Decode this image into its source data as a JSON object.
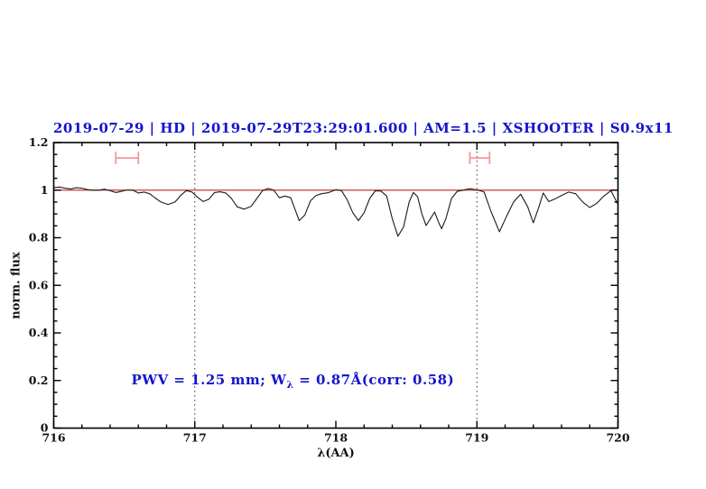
{
  "figure": {
    "title": "2019-07-29 | HD | 2019-07-29T23:29:01.600 | AM=1.5 | XSHOOTER | S0.9x11",
    "title_color": "#1414cc"
  },
  "chart_data": {
    "type": "line",
    "title": "2019-07-29 | HD | 2019-07-29T23:29:01.600 | AM=1.5 | XSHOOTER | S0.9x11",
    "xlabel": "λ(AA)",
    "ylabel": "norm. flux",
    "xlim": [
      716,
      720
    ],
    "ylim": [
      0,
      1.2
    ],
    "x_major_ticks": [
      716,
      717,
      718,
      719,
      720
    ],
    "x_tick_labels": [
      "716",
      "717",
      "718",
      "719",
      "720"
    ],
    "x_minor_step": 0.2,
    "y_major_ticks": [
      0,
      0.2,
      0.4,
      0.6,
      0.8,
      1,
      1.2
    ],
    "y_tick_labels": [
      "0",
      "0.2",
      "0.4",
      "0.6",
      "0.8",
      "1",
      "1.2"
    ],
    "y_minor_step": 0.05,
    "grid": "off",
    "vlines": {
      "x": [
        717,
        719
      ],
      "style": "dotted",
      "color": "#333333"
    },
    "continuum": {
      "y": 1.0,
      "color": "#c23b3b"
    },
    "series": [
      {
        "name": "spectrum",
        "color": "#1a1a1a",
        "points": [
          [
            716.0,
            1.01
          ],
          [
            716.04,
            1.013
          ],
          [
            716.08,
            1.008
          ],
          [
            716.12,
            1.005
          ],
          [
            716.16,
            1.01
          ],
          [
            716.2,
            1.008
          ],
          [
            716.24,
            1.002
          ],
          [
            716.28,
            1.0
          ],
          [
            716.32,
            1.0
          ],
          [
            716.36,
            1.004
          ],
          [
            716.4,
            0.998
          ],
          [
            716.44,
            0.99
          ],
          [
            716.48,
            0.995
          ],
          [
            716.52,
            1.001
          ],
          [
            716.56,
            1.0
          ],
          [
            716.6,
            0.988
          ],
          [
            716.64,
            0.992
          ],
          [
            716.68,
            0.985
          ],
          [
            716.72,
            0.967
          ],
          [
            716.76,
            0.95
          ],
          [
            716.81,
            0.94
          ],
          [
            716.86,
            0.95
          ],
          [
            716.9,
            0.978
          ],
          [
            716.94,
            0.998
          ],
          [
            716.98,
            0.992
          ],
          [
            717.02,
            0.97
          ],
          [
            717.06,
            0.952
          ],
          [
            717.1,
            0.962
          ],
          [
            717.14,
            0.99
          ],
          [
            717.18,
            0.993
          ],
          [
            717.22,
            0.988
          ],
          [
            717.26,
            0.965
          ],
          [
            717.3,
            0.93
          ],
          [
            717.35,
            0.92
          ],
          [
            717.4,
            0.932
          ],
          [
            717.44,
            0.965
          ],
          [
            717.48,
            0.998
          ],
          [
            717.52,
            1.007
          ],
          [
            717.56,
            1.0
          ],
          [
            717.6,
            0.968
          ],
          [
            717.64,
            0.975
          ],
          [
            717.68,
            0.968
          ],
          [
            717.71,
            0.92
          ],
          [
            717.74,
            0.872
          ],
          [
            717.78,
            0.895
          ],
          [
            717.82,
            0.955
          ],
          [
            717.86,
            0.978
          ],
          [
            717.9,
            0.985
          ],
          [
            717.95,
            0.99
          ],
          [
            718.0,
            1.002
          ],
          [
            718.04,
            0.998
          ],
          [
            718.08,
            0.96
          ],
          [
            718.12,
            0.905
          ],
          [
            718.16,
            0.872
          ],
          [
            718.2,
            0.905
          ],
          [
            718.24,
            0.965
          ],
          [
            718.28,
            0.997
          ],
          [
            718.32,
            0.996
          ],
          [
            718.36,
            0.975
          ],
          [
            718.4,
            0.88
          ],
          [
            718.44,
            0.806
          ],
          [
            718.48,
            0.845
          ],
          [
            718.52,
            0.95
          ],
          [
            718.55,
            0.99
          ],
          [
            718.58,
            0.972
          ],
          [
            718.61,
            0.9
          ],
          [
            718.64,
            0.851
          ],
          [
            718.67,
            0.88
          ],
          [
            718.7,
            0.908
          ],
          [
            718.73,
            0.862
          ],
          [
            718.75,
            0.838
          ],
          [
            718.78,
            0.88
          ],
          [
            718.82,
            0.965
          ],
          [
            718.86,
            0.995
          ],
          [
            718.9,
            1.0
          ],
          [
            718.95,
            1.006
          ],
          [
            719.0,
            1.001
          ],
          [
            719.05,
            0.993
          ],
          [
            719.1,
            0.91
          ],
          [
            719.16,
            0.825
          ],
          [
            719.21,
            0.89
          ],
          [
            719.26,
            0.95
          ],
          [
            719.31,
            0.983
          ],
          [
            719.36,
            0.93
          ],
          [
            719.4,
            0.863
          ],
          [
            719.44,
            0.93
          ],
          [
            719.47,
            0.988
          ],
          [
            719.51,
            0.952
          ],
          [
            719.55,
            0.962
          ],
          [
            719.6,
            0.978
          ],
          [
            719.65,
            0.992
          ],
          [
            719.7,
            0.985
          ],
          [
            719.75,
            0.95
          ],
          [
            719.8,
            0.927
          ],
          [
            719.85,
            0.945
          ],
          [
            719.9,
            0.975
          ],
          [
            719.95,
            0.998
          ],
          [
            720.0,
            0.94
          ]
        ]
      }
    ],
    "markers": [
      {
        "type": "errorbar-h",
        "x1": 716.44,
        "x2": 716.6,
        "y": 1.135,
        "cap_half_height": 0.026,
        "color": "#f09a9a"
      },
      {
        "type": "errorbar-h",
        "x1": 718.95,
        "x2": 719.09,
        "y": 1.135,
        "cap_half_height": 0.026,
        "color": "#f09a9a"
      }
    ],
    "annotation": {
      "pre": "PWV  =  1.25  mm; W",
      "sub": "λ",
      "post": "  =  0.87Å(corr: 0.58)",
      "x": 716.55,
      "y": 0.2,
      "color": "#1414cc"
    }
  }
}
